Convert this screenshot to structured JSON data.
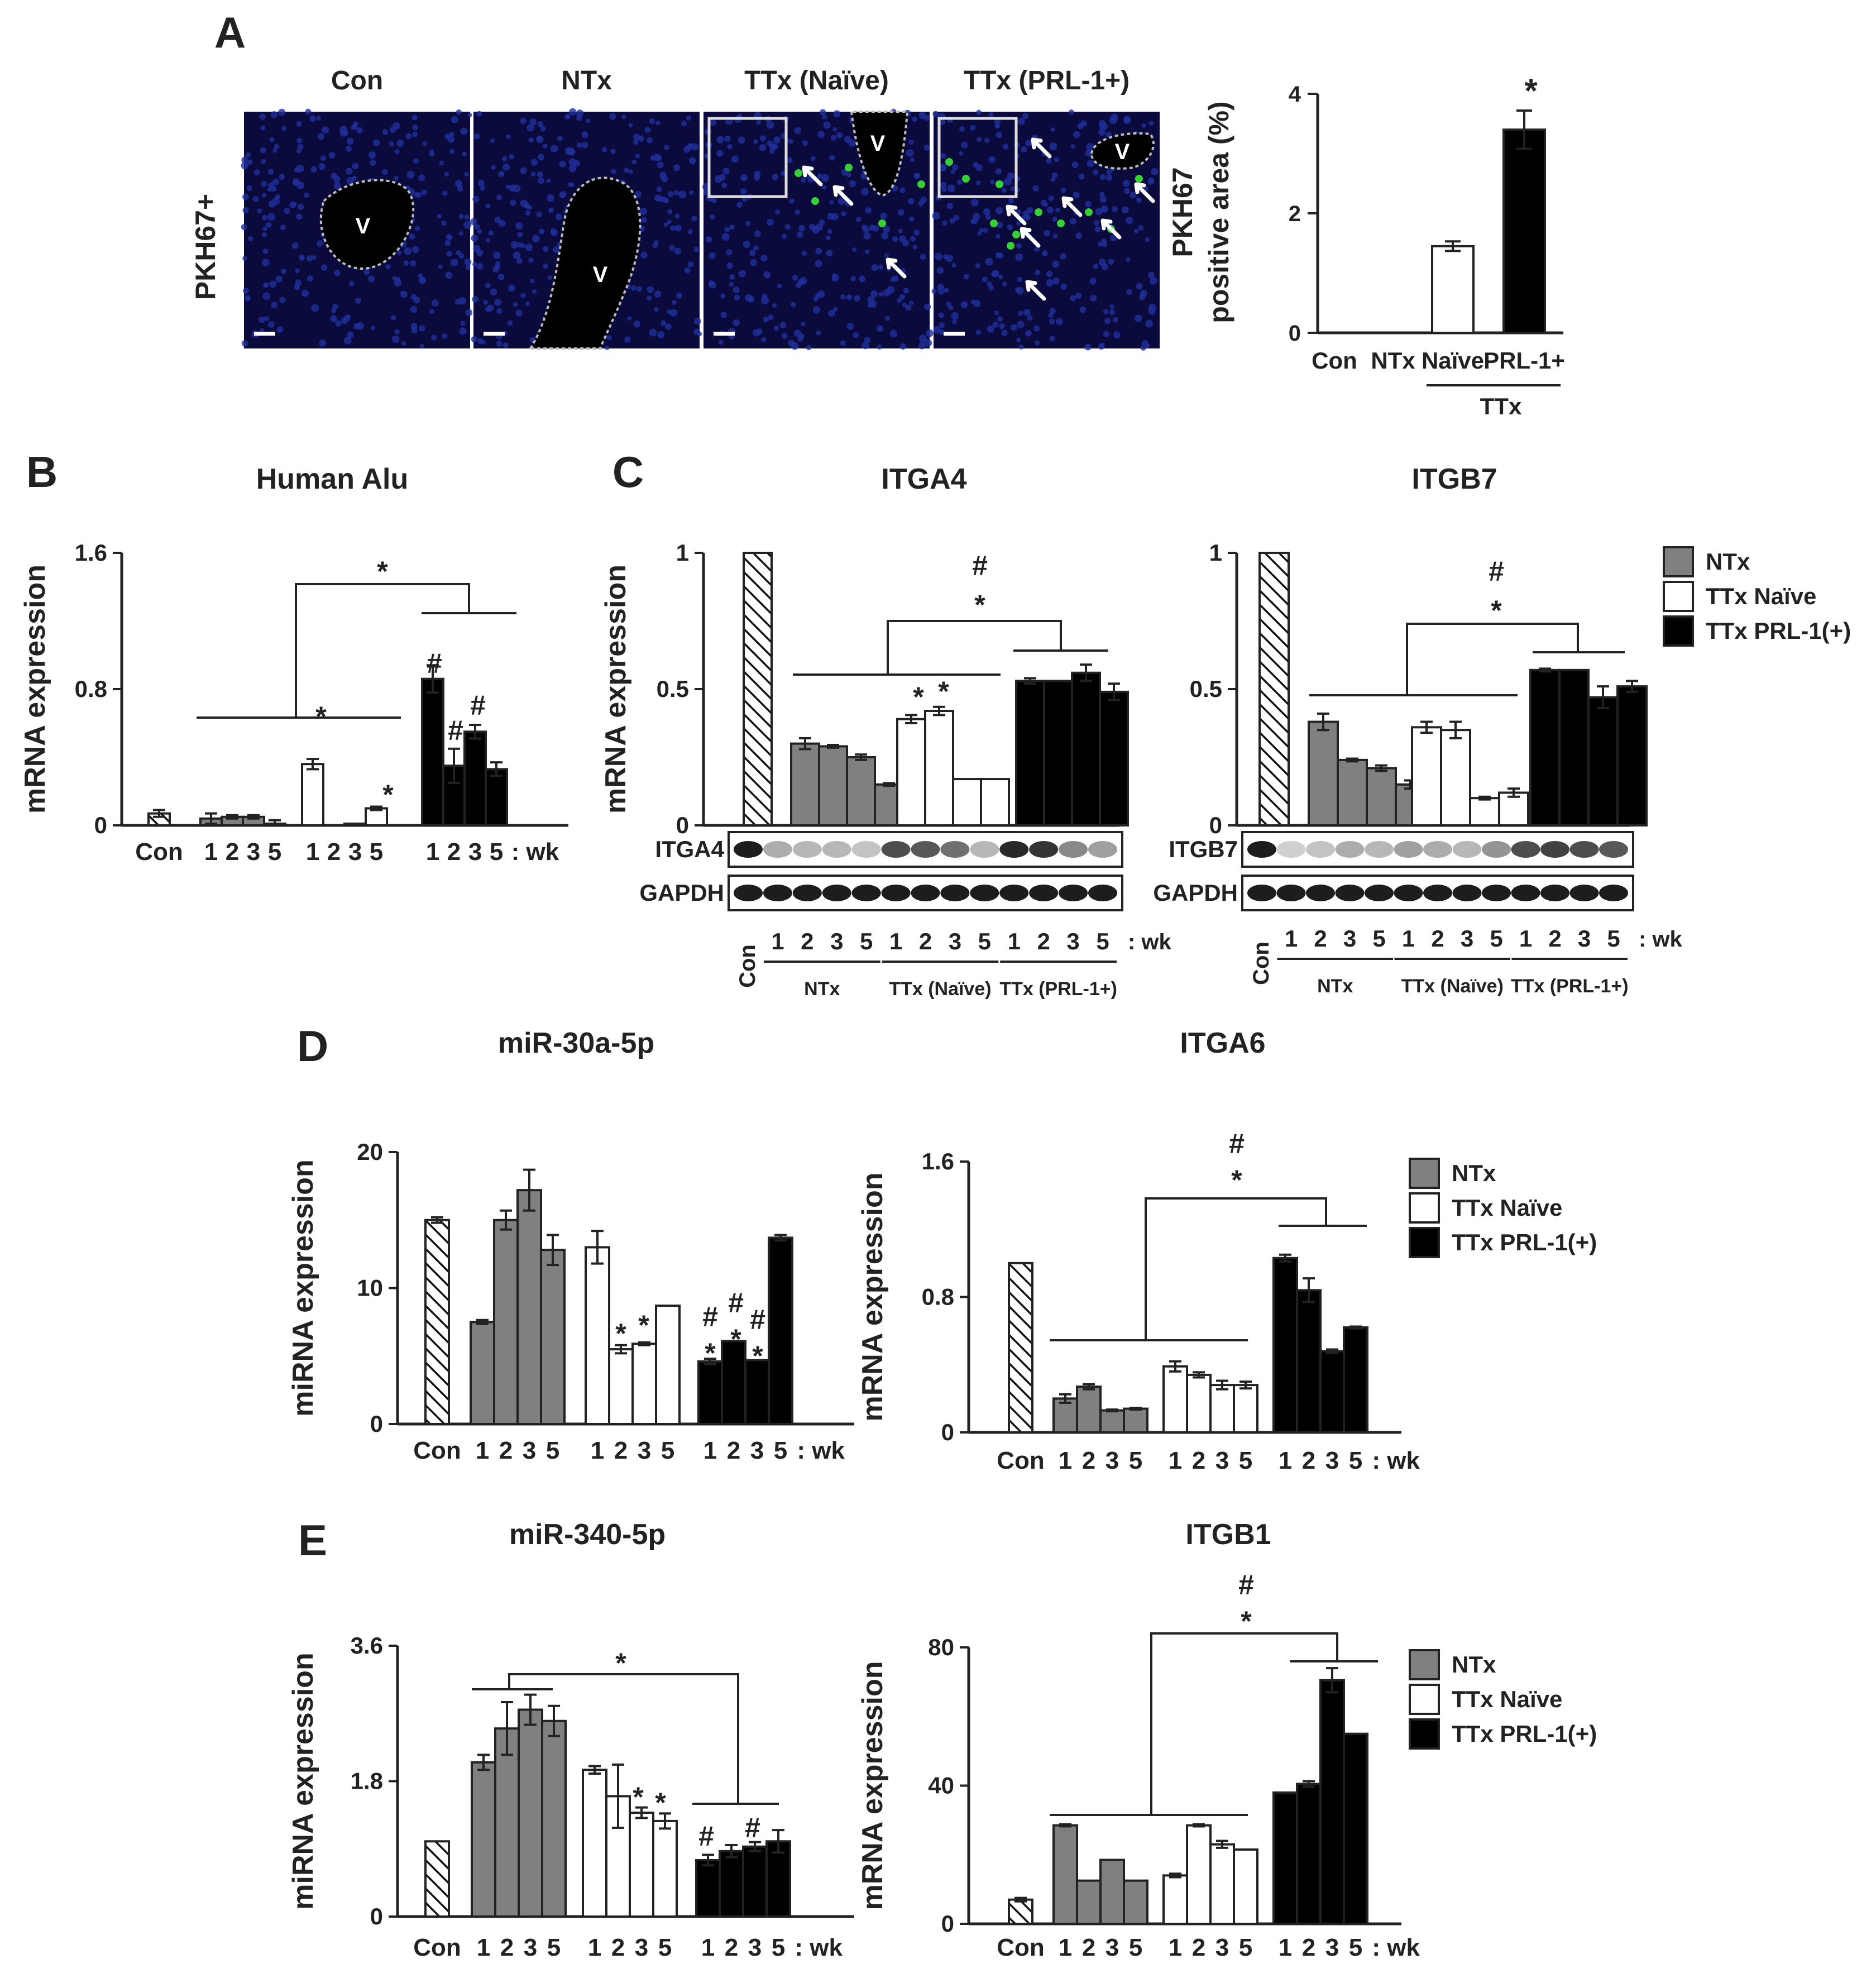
{
  "panelA": {
    "letter": "A",
    "side_label": "PKH67+",
    "vessel_label": "V",
    "images": [
      {
        "label": "Con"
      },
      {
        "label": "NTx"
      },
      {
        "label": "TTx (Naïve)"
      },
      {
        "label": "TTx (PRL-1+)"
      }
    ],
    "chart_data": {
      "type": "bar",
      "categories": [
        "Con",
        "NTx",
        "Naïve",
        "PRL-1+"
      ],
      "values": [
        0,
        0,
        1.45,
        3.4
      ],
      "errors": [
        0,
        0,
        0.08,
        0.32
      ],
      "ylabel_line1": "PKH67",
      "ylabel_line2": "positive area (%)",
      "ylim": [
        0,
        4
      ],
      "yticks": [
        "0",
        "2",
        "4"
      ],
      "group_label": "TTx",
      "significance": "*",
      "colors": [
        "#ffffff",
        "#ffffff",
        "#ffffff",
        "#000000"
      ]
    }
  },
  "legend": {
    "items": [
      {
        "label": "NTx",
        "color": "#808080"
      },
      {
        "label": "TTx Naïve",
        "color": "#ffffff"
      },
      {
        "label": "TTx PRL-1(+)",
        "color": "#000000"
      }
    ]
  },
  "week_labels": [
    "1",
    "2",
    "3",
    "5"
  ],
  "week_suffix": ": wk",
  "con_label": "Con",
  "group_labels": [
    "NTx",
    "TTx (Naïve)",
    "TTx (PRL-1+)"
  ],
  "blot_ref": "GAPDH",
  "chart_data": [
    {
      "id": "B",
      "letter": "B",
      "title": "Human Alu",
      "type": "bar",
      "ylabel": "mRNA expression",
      "ylim": [
        0,
        1.6
      ],
      "yticks": [
        "0",
        "0.8",
        "1.6"
      ],
      "control": 0.07,
      "control_err": 0.02,
      "series": [
        {
          "name": "NTx",
          "values": [
            0.04,
            0.05,
            0.05,
            0.01
          ],
          "errors": [
            0.03,
            0.01,
            0.01,
            0.02
          ]
        },
        {
          "name": "TTx Naïve",
          "values": [
            0.36,
            0.0,
            0.01,
            0.1
          ],
          "errors": [
            0.03,
            0,
            0,
            0.01
          ]
        },
        {
          "name": "TTx PRL-1(+)",
          "values": [
            0.86,
            0.35,
            0.55,
            0.33
          ],
          "errors": [
            0.08,
            0.1,
            0.04,
            0.04
          ]
        }
      ]
    },
    {
      "id": "C1",
      "letter": "C",
      "title": "ITGA4",
      "type": "bar",
      "ylabel": "mRNA expression",
      "ylim": [
        0,
        1
      ],
      "yticks": [
        "0",
        "0.5",
        "1"
      ],
      "control": 1.0,
      "control_err": 0,
      "blot_label": "ITGA4",
      "series": [
        {
          "name": "NTx",
          "values": [
            0.3,
            0.29,
            0.25,
            0.15
          ],
          "errors": [
            0.02,
            0.005,
            0.01,
            0.005
          ]
        },
        {
          "name": "TTx Naïve",
          "values": [
            0.39,
            0.42,
            0.17,
            0.17
          ],
          "errors": [
            0.015,
            0.015,
            0,
            0
          ]
        },
        {
          "name": "TTx PRL-1(+)",
          "values": [
            0.53,
            0.53,
            0.56,
            0.49
          ],
          "errors": [
            0.01,
            0,
            0.03,
            0.03
          ]
        }
      ]
    },
    {
      "id": "C2",
      "title": "ITGB7",
      "type": "bar",
      "ylabel": "",
      "ylim": [
        0,
        1
      ],
      "yticks": [
        "0",
        "0.5",
        "1"
      ],
      "control": 1.0,
      "control_err": 0,
      "blot_label": "ITGB7",
      "series": [
        {
          "name": "NTx",
          "values": [
            0.38,
            0.24,
            0.21,
            0.15
          ],
          "errors": [
            0.03,
            0.005,
            0.01,
            0.015
          ]
        },
        {
          "name": "TTx Naïve",
          "values": [
            0.36,
            0.35,
            0.1,
            0.12
          ],
          "errors": [
            0.02,
            0.03,
            0.005,
            0.015
          ]
        },
        {
          "name": "TTx PRL-1(+)",
          "values": [
            0.57,
            0.57,
            0.47,
            0.51
          ],
          "errors": [
            0.005,
            0,
            0.04,
            0.02
          ]
        }
      ]
    },
    {
      "id": "D1",
      "letter": "D",
      "title": "miR-30a-5p",
      "type": "bar",
      "ylabel": "miRNA expression",
      "ylim": [
        0,
        20
      ],
      "yticks": [
        "0",
        "10",
        "20"
      ],
      "control": 15,
      "control_err": 0.2,
      "series": [
        {
          "name": "NTx",
          "values": [
            7.5,
            15,
            17.2,
            12.8
          ],
          "errors": [
            0.15,
            0.7,
            1.5,
            1.1
          ]
        },
        {
          "name": "TTx Naïve",
          "values": [
            13,
            5.5,
            5.9,
            8.7
          ],
          "errors": [
            1.2,
            0.3,
            0.1,
            0
          ]
        },
        {
          "name": "TTx PRL-1(+)",
          "values": [
            4.6,
            6.1,
            4.7,
            13.7
          ],
          "errors": [
            0.2,
            0,
            0,
            0.2
          ]
        }
      ]
    },
    {
      "id": "D2",
      "title": "ITGA6",
      "type": "bar",
      "ylabel": "mRNA expression",
      "ylim": [
        0,
        1.6
      ],
      "yticks": [
        "0",
        "0.8",
        "1.6"
      ],
      "control": 1.0,
      "control_err": 0,
      "series": [
        {
          "name": "NTx",
          "values": [
            0.2,
            0.27,
            0.13,
            0.14
          ],
          "errors": [
            0.025,
            0.015,
            0.005,
            0.005
          ]
        },
        {
          "name": "TTx Naïve",
          "values": [
            0.39,
            0.34,
            0.28,
            0.28
          ],
          "errors": [
            0.03,
            0.015,
            0.025,
            0.02
          ]
        },
        {
          "name": "TTx PRL-1(+)",
          "values": [
            1.03,
            0.84,
            0.48,
            0.62
          ],
          "errors": [
            0.02,
            0.07,
            0.01,
            0.005
          ]
        }
      ]
    },
    {
      "id": "E1",
      "letter": "E",
      "title": "miR-340-5p",
      "type": "bar",
      "ylabel": "miRNA expression",
      "ylim": [
        0,
        3.6
      ],
      "yticks": [
        "0",
        "1.8",
        "3.6"
      ],
      "control": 1.0,
      "control_err": 0,
      "series": [
        {
          "name": "NTx",
          "values": [
            2.05,
            2.5,
            2.75,
            2.6
          ],
          "errors": [
            0.1,
            0.35,
            0.2,
            0.2
          ]
        },
        {
          "name": "TTx Naïve",
          "values": [
            1.95,
            1.6,
            1.38,
            1.27
          ],
          "errors": [
            0.05,
            0.42,
            0.07,
            0.1
          ]
        },
        {
          "name": "TTx PRL-1(+)",
          "values": [
            0.75,
            0.87,
            0.93,
            1.0
          ],
          "errors": [
            0.07,
            0.08,
            0.06,
            0.15
          ]
        }
      ]
    },
    {
      "id": "E2",
      "title": "ITGB1",
      "type": "bar",
      "ylabel": "mRNA expression",
      "ylim": [
        0,
        80
      ],
      "yticks": [
        "0",
        "40",
        "80"
      ],
      "control": 7,
      "control_err": 0.5,
      "series": [
        {
          "name": "NTx",
          "values": [
            28.5,
            12.5,
            18.5,
            12.5
          ],
          "errors": [
            0.3,
            0,
            0,
            0
          ]
        },
        {
          "name": "TTx Naïve",
          "values": [
            14,
            28.5,
            23,
            21.5
          ],
          "errors": [
            0.5,
            0.3,
            1,
            0
          ]
        },
        {
          "name": "TTx PRL-1(+)",
          "values": [
            38,
            40.5,
            70.5,
            55
          ],
          "errors": [
            0,
            0.8,
            3.5,
            0
          ]
        }
      ]
    }
  ]
}
